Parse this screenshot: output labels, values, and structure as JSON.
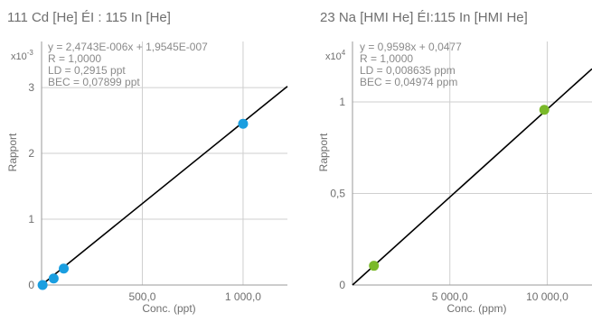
{
  "chart_data": [
    {
      "type": "scatter",
      "title": "111 Cd [He] ÉI : 115 In [He]",
      "xlabel": "Conc. (ppt)",
      "ylabel": "Rapport",
      "y_multiplier": "x10-3",
      "x_tick_labels": [
        "500,0",
        "1 000,0"
      ],
      "x_tick_values": [
        500,
        1000
      ],
      "y_tick_labels": [
        "0",
        "1",
        "2",
        "3"
      ],
      "y_tick_values": [
        0,
        1,
        2,
        3
      ],
      "xlim": [
        0,
        1220
      ],
      "ylim": [
        0,
        3.7
      ],
      "grid": true,
      "point_color": "#1a9ee0",
      "points": {
        "x": [
          5,
          60,
          110,
          1000
        ],
        "y": [
          0.0,
          0.1,
          0.25,
          2.45
        ]
      },
      "fit": {
        "slope": 0.0024743,
        "intercept": 0.00019545
      },
      "annotations": [
        "y = 2,4743E-006x + 1,9545E-007",
        "R = 1,0000",
        "LD = 0,2915 ppt",
        "BEC = 0,07899 ppt"
      ]
    },
    {
      "type": "scatter",
      "title": "23 Na [HMI He] ÉI:115 In [HMI He]",
      "xlabel": "Conc. (ppm)",
      "ylabel": "Rapport",
      "y_multiplier": "x104",
      "x_tick_labels": [
        "5 000,0",
        "10 000,0"
      ],
      "x_tick_values": [
        5000,
        10000
      ],
      "y_tick_labels": [
        "0",
        "0,5",
        "1"
      ],
      "y_tick_values": [
        0,
        0.5,
        1
      ],
      "xlim": [
        0,
        12300
      ],
      "ylim": [
        0,
        1.33
      ],
      "grid": true,
      "point_color": "#7ab929",
      "points": {
        "x": [
          1100,
          9850
        ],
        "y": [
          0.105,
          0.957
        ]
      },
      "fit": {
        "slope": 9.6e-05,
        "intercept": 0.0
      },
      "annotations": [
        "y = 0,9598x + 0,0477",
        "R = 1,0000",
        "LD = 0,008635 ppm",
        "BEC = 0,04974 ppm"
      ]
    }
  ]
}
